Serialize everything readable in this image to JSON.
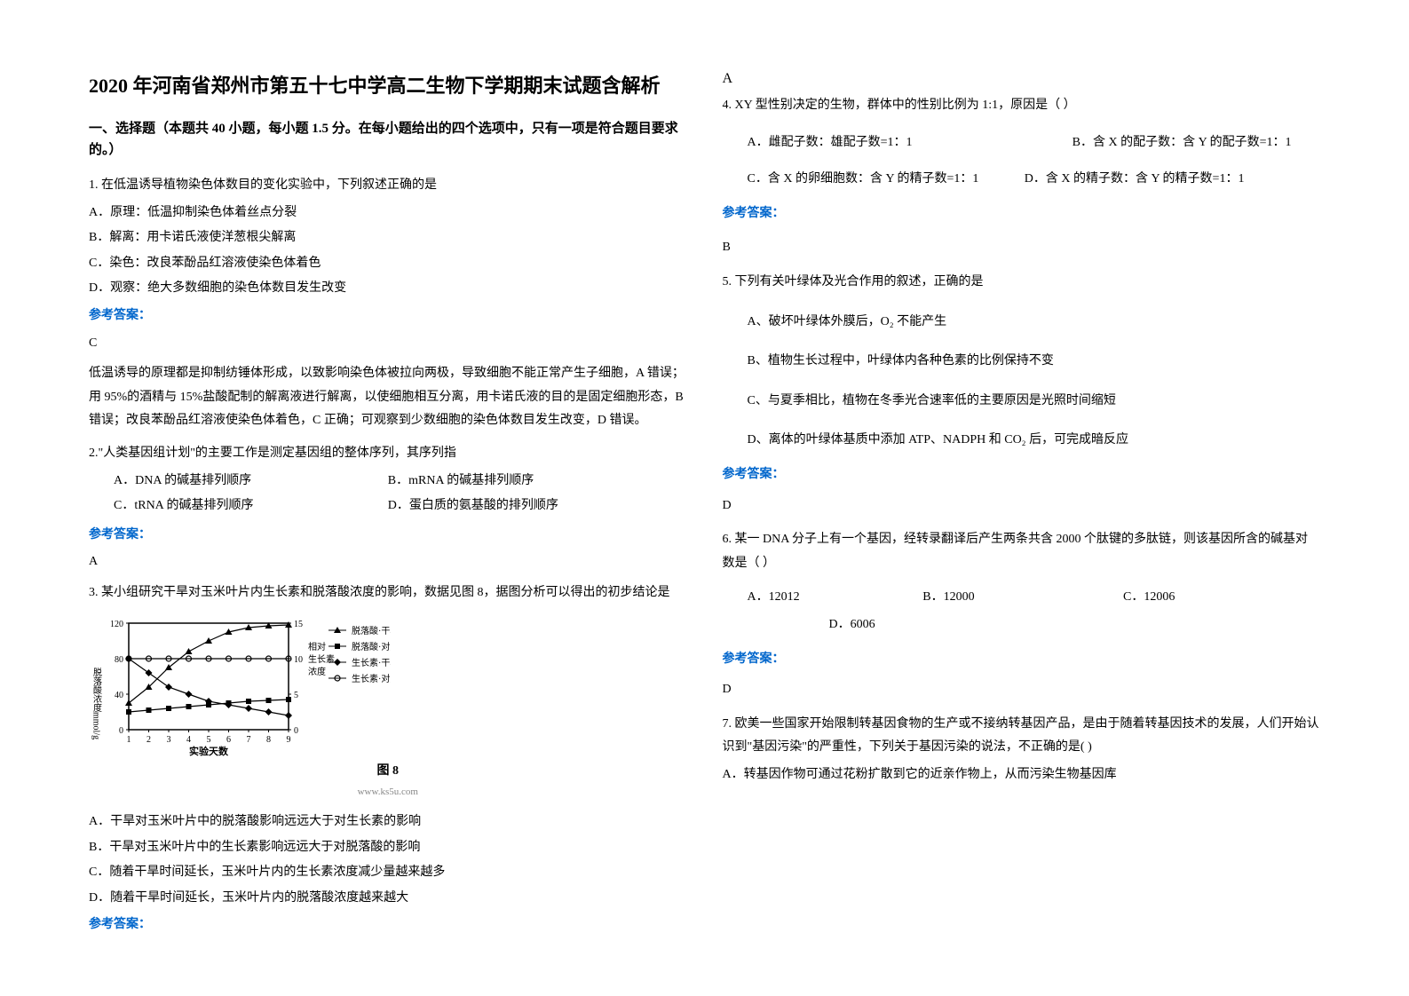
{
  "title": "2020 年河南省郑州市第五十七中学高二生物下学期期末试题含解析",
  "section_header": "一、选择题（本题共 40 小题，每小题 1.5 分。在每小题给出的四个选项中，只有一项是符合题目要求的。）",
  "q1": {
    "text": "1. 在低温诱导植物染色体数目的变化实验中，下列叙述正确的是",
    "opts": {
      "a": "A．原理：低温抑制染色体着丝点分裂",
      "b": "B．解离：用卡诺氏液使洋葱根尖解离",
      "c": "C．染色：改良苯酚品红溶液使染色体着色",
      "d": "D．观察：绝大多数细胞的染色体数目发生改变"
    },
    "answer_label": "参考答案：",
    "answer": "C",
    "explanation": "低温诱导的原理都是抑制纺锤体形成，以致影响染色体被拉向两极，导致细胞不能正常产生子细胞，A 错误；用 95%的酒精与 15%盐酸配制的解离液进行解离，以使细胞相互分离，用卡诺氏液的目的是固定细胞形态，B 错误；改良苯酚品红溶液使染色体着色，C 正确；可观察到少数细胞的染色体数目发生改变，D 错误。"
  },
  "q2": {
    "text": "2.\"人类基因组计划\"的主要工作是测定基因组的整体序列，其序列指",
    "opts": {
      "a": "A．DNA 的碱基排列顺序",
      "b": "B．mRNA 的碱基排列顺序",
      "c": "C．tRNA 的碱基排列顺序",
      "d": "D．蛋白质的氨基酸的排列顺序"
    },
    "answer_label": "参考答案：",
    "answer": "A"
  },
  "q3": {
    "text": "3. 某小组研究干旱对玉米叶片内生长素和脱落酸浓度的影响，数据见图 8，据图分析可以得出的初步结论是",
    "chart": {
      "type": "line",
      "caption": "图  8",
      "source": "www.ks5u.com",
      "x_label": "实验天数",
      "y_left_label": "脱落酸浓度mmol/g",
      "y_right_label": "相对\n生长素\n浓度",
      "x_ticks": [
        1,
        2,
        3,
        4,
        5,
        6,
        7,
        8,
        9
      ],
      "y_left_ticks": [
        0,
        40,
        80,
        120
      ],
      "y_right_ticks": [
        0,
        5,
        10,
        15
      ],
      "y_left_lim": [
        0,
        120
      ],
      "y_right_lim": [
        0,
        15
      ],
      "background_color": "#ffffff",
      "axis_color": "#000000",
      "series": [
        {
          "name": "脱落酸·干旱",
          "marker": "triangle",
          "color": "#000000",
          "y": [
            30,
            48,
            70,
            88,
            100,
            110,
            115,
            117,
            118
          ]
        },
        {
          "name": "脱落酸·对照",
          "marker": "square",
          "color": "#000000",
          "y": [
            20,
            22,
            24,
            26,
            28,
            30,
            32,
            33,
            34
          ]
        },
        {
          "name": "生长素·干旱",
          "marker": "diamond",
          "color": "#000000",
          "y": [
            10,
            8,
            6,
            5,
            4,
            3.5,
            3,
            2.5,
            2
          ]
        },
        {
          "name": "生长素·对照",
          "marker": "circle",
          "color": "#000000",
          "y": [
            10,
            10,
            10,
            10,
            10,
            10,
            10,
            10,
            10
          ]
        }
      ],
      "legend_items": [
        "脱落酸·干旱",
        "脱落酸·对照",
        "生长素·干旱",
        "生长素·对照"
      ]
    },
    "opts": {
      "a": "A．干旱对玉米叶片中的脱落酸影响远远大于对生长素的影响",
      "b": "B．干旱对玉米叶片中的生长素影响远远大于对脱落酸的影响",
      "c": "C．随着干旱时间延长，玉米叶片内的生长素浓度减少量越来越多",
      "d": "D．随着干旱时间延长，玉米叶片内的脱落酸浓度越来越大"
    },
    "answer_label": "参考答案：",
    "answer": "A"
  },
  "q4": {
    "text": "4. XY 型性别决定的生物，群体中的性别比例为 1:1，原因是（  ）",
    "opts": {
      "a": "A．雌配子数：雄配子数=1：1",
      "b": "B．含 X 的配子数：含 Y 的配子数=1：1",
      "c": "C．含 X 的卵细胞数：含 Y 的精子数=1：1",
      "d": "D．含 X 的精子数：含 Y 的精子数=1：1"
    },
    "answer_label": "参考答案：",
    "answer": "B"
  },
  "q5": {
    "text": "5. 下列有关叶绿体及光合作用的叙述，正确的是",
    "opts": {
      "a": "A、破坏叶绿体外膜后，O₂ 不能产生",
      "b": "B、植物生长过程中，叶绿体内各种色素的比例保持不变",
      "c": "C、与夏季相比，植物在冬季光合速率低的主要原因是光照时间缩短",
      "d": "D、离体的叶绿体基质中添加 ATP、NADPH 和 CO₂ 后，可完成暗反应"
    },
    "answer_label": "参考答案：",
    "answer": "D"
  },
  "q6": {
    "text": "6. 某一 DNA 分子上有一个基因，经转录翻译后产生两条共含 2000 个肽键的多肽链，则该基因所含的碱基对数是（  ）",
    "opts": {
      "a": "A．12012",
      "b": "B．12000",
      "c": "C．12006",
      "d": "D．6006"
    },
    "answer_label": "参考答案：",
    "answer": "D"
  },
  "q7": {
    "text": "7. 欧美一些国家开始限制转基因食物的生产或不接纳转基因产品，是由于随着转基因技术的发展，人们开始认识到\"基因污染\"的严重性，下列关于基因污染的说法，不正确的是(      )",
    "opts": {
      "a": "A．转基因作物可通过花粉扩散到它的近亲作物上，从而污染生物基因库"
    }
  }
}
